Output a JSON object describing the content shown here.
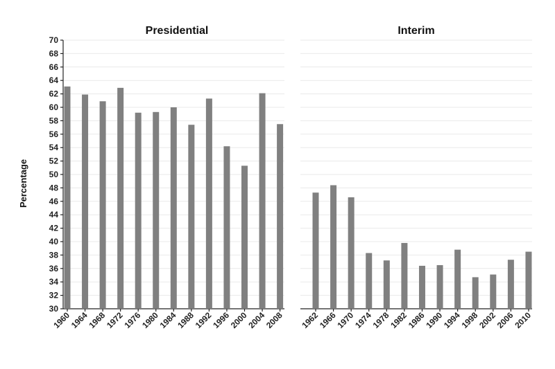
{
  "chart_data": {
    "type": "bar",
    "ylabel": "Percentage",
    "ylim": [
      30,
      70
    ],
    "yticks": [
      30,
      32,
      34,
      36,
      38,
      40,
      42,
      44,
      46,
      48,
      50,
      52,
      54,
      56,
      58,
      60,
      62,
      64,
      66,
      68,
      70
    ],
    "grid": true,
    "bar_color": "#808080",
    "panels": [
      {
        "title": "Presidential",
        "categories": [
          "1960",
          "1964",
          "1968",
          "1972",
          "1976",
          "1980",
          "1984",
          "1988",
          "1992",
          "1996",
          "2000",
          "2004",
          "2008"
        ],
        "values": [
          63.1,
          61.9,
          60.9,
          62.9,
          59.2,
          59.3,
          60.0,
          57.4,
          61.3,
          54.2,
          51.3,
          62.1,
          57.5
        ]
      },
      {
        "title": "Interim",
        "categories": [
          "1962",
          "1966",
          "1970",
          "1974",
          "1978",
          "1982",
          "1986",
          "1990",
          "1994",
          "1998",
          "2002",
          "2006",
          "2010"
        ],
        "values": [
          47.3,
          48.4,
          46.6,
          38.3,
          37.2,
          39.8,
          36.4,
          36.5,
          38.8,
          34.7,
          35.1,
          37.3,
          38.5
        ]
      }
    ]
  }
}
